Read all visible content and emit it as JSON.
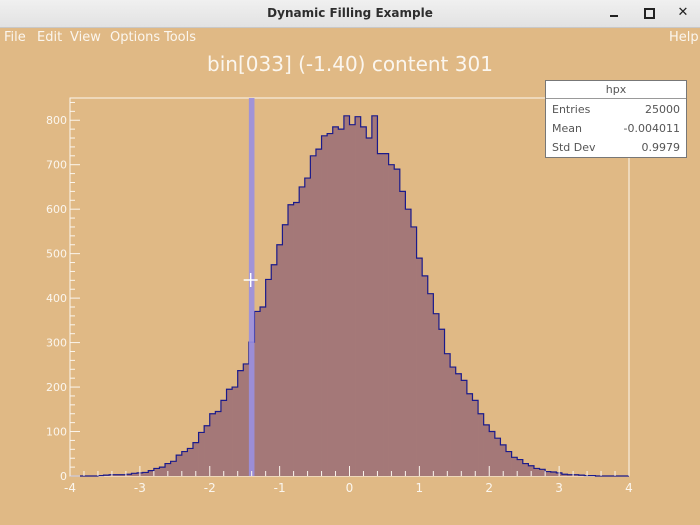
{
  "window": {
    "title": "Dynamic Filling Example",
    "minimize_icon": "minimize-icon",
    "maximize_icon": "maximize-icon",
    "close_icon": "close-icon"
  },
  "menu": {
    "file": "File",
    "edit": "Edit",
    "view": "View",
    "options": "Options",
    "tools": "Tools",
    "help": "Help"
  },
  "colors": {
    "background": "#e0b985",
    "fill": "#a47878",
    "line": "#1a1a8c",
    "highlight": "#9a8fe0",
    "axis_text": "#fbf6ee"
  },
  "plot": {
    "title": "bin[033] (-1.40) content 301"
  },
  "stats": {
    "name": "hpx",
    "rows": [
      {
        "label": "Entries",
        "value": "25000"
      },
      {
        "label": "Mean",
        "value": "-0.004011"
      },
      {
        "label": "Std Dev",
        "value": "0.9979"
      }
    ]
  },
  "chart_data": {
    "type": "bar",
    "title": "bin[033] (-1.40) content 301",
    "xlim": [
      -4,
      4
    ],
    "ylim": [
      0,
      850
    ],
    "xticks": [
      "-4",
      "-3",
      "-2",
      "-1",
      "0",
      "1",
      "2",
      "3",
      "4"
    ],
    "yticks": [
      "0",
      "100",
      "200",
      "300",
      "400",
      "500",
      "600",
      "700",
      "800"
    ],
    "bin_width": 0.08,
    "highlighted_bin": 33,
    "values": [
      0,
      0,
      0,
      0,
      0,
      1,
      2,
      3,
      3,
      3,
      4,
      6,
      7,
      8,
      12,
      17,
      20,
      28,
      33,
      47,
      55,
      62,
      75,
      98,
      113,
      140,
      145,
      170,
      195,
      200,
      237,
      252,
      301,
      370,
      380,
      442,
      475,
      520,
      565,
      610,
      615,
      650,
      670,
      720,
      735,
      765,
      770,
      785,
      780,
      810,
      790,
      808,
      785,
      760,
      810,
      725,
      725,
      700,
      690,
      640,
      600,
      560,
      490,
      450,
      410,
      365,
      330,
      275,
      245,
      230,
      215,
      185,
      170,
      140,
      115,
      100,
      85,
      70,
      55,
      42,
      37,
      28,
      23,
      17,
      15,
      10,
      9,
      7,
      4,
      3,
      3,
      2,
      1,
      1,
      0,
      0,
      0,
      0,
      0,
      0
    ]
  }
}
